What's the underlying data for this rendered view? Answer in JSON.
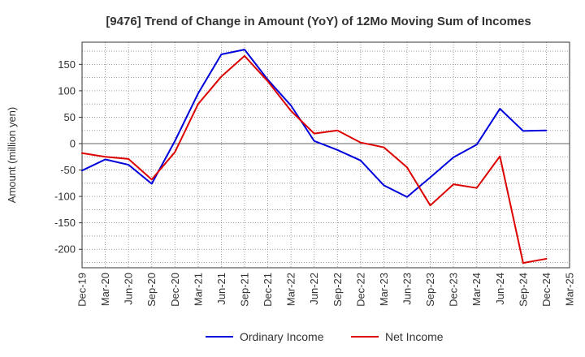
{
  "chart_data": {
    "type": "line",
    "title": "[9476]  Trend of Change in Amount (YoY) of 12Mo Moving Sum of Incomes",
    "xlabel": "",
    "ylabel": "Amount (million yen)",
    "ylim": [
      -235,
      192
    ],
    "yticks": [
      150,
      100,
      50,
      0,
      -50,
      -100,
      -150,
      -200
    ],
    "categories": [
      "Dec-19",
      "Mar-20",
      "Jun-20",
      "Sep-20",
      "Dec-20",
      "Mar-21",
      "Jun-21",
      "Sep-21",
      "Dec-21",
      "Mar-22",
      "Jun-22",
      "Sep-22",
      "Dec-22",
      "Mar-23",
      "Jun-23",
      "Sep-23",
      "Dec-23",
      "Mar-24",
      "Jun-24",
      "Sep-24",
      "Dec-24",
      "Mar-25"
    ],
    "grid": true,
    "legend_position": "bottom-center",
    "series": [
      {
        "name": "Ordinary Income",
        "color": "#0000dd",
        "values": [
          -51,
          -30,
          -40,
          -76,
          5,
          95,
          169,
          178,
          121,
          72,
          5,
          -12,
          -32,
          -79,
          -101,
          -64,
          -26,
          -2,
          66,
          24,
          25,
          null
        ]
      },
      {
        "name": "Net Income",
        "color": "#dd0000",
        "values": [
          -18,
          -25,
          -29,
          -68,
          -16,
          75,
          127,
          166,
          118,
          62,
          19,
          25,
          2,
          -7,
          -45,
          -117,
          -77,
          -84,
          -24,
          -226,
          -218,
          null
        ]
      }
    ]
  }
}
